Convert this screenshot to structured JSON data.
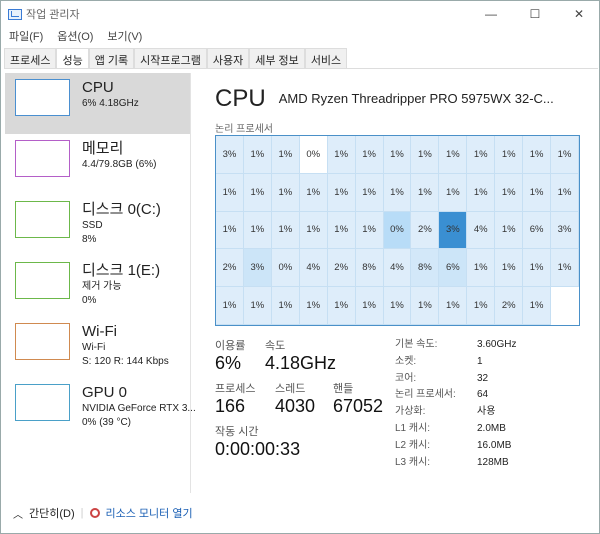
{
  "window": {
    "title": "작업 관리자",
    "minimize": "—",
    "maximize": "☐",
    "close": "✕"
  },
  "menu": [
    "파일(F)",
    "옵션(O)",
    "보기(V)"
  ],
  "tabs": [
    {
      "label": "프로세스"
    },
    {
      "label": "성능",
      "active": true
    },
    {
      "label": "앱 기록"
    },
    {
      "label": "시작프로그램"
    },
    {
      "label": "사용자"
    },
    {
      "label": "세부 정보"
    },
    {
      "label": "서비스"
    }
  ],
  "sidebar": [
    {
      "name": "CPU",
      "lines": [
        "6% 4.18GHz"
      ],
      "color": "#4a8fd0",
      "active": true
    },
    {
      "name": "메모리",
      "lines": [
        "4.4/79.8GB (6%)"
      ],
      "color": "#b45fc8"
    },
    {
      "name": "디스크 0(C:)",
      "lines": [
        "SSD",
        "8%"
      ],
      "color": "#6cb84a"
    },
    {
      "name": "디스크 1(E:)",
      "lines": [
        "제거 가능",
        "0%"
      ],
      "color": "#6cb84a"
    },
    {
      "name": "Wi-Fi",
      "lines": [
        "Wi-Fi",
        "S: 120 R: 144 Kbps"
      ],
      "color": "#d08a50"
    },
    {
      "name": "GPU 0",
      "lines": [
        "NVIDIA GeForce RTX 3...",
        "0% (39 °C)"
      ],
      "color": "#4aa0c8"
    }
  ],
  "main": {
    "title": "CPU",
    "model": "AMD Ryzen Threadripper PRO 5975WX 32-C...",
    "logical_label": "논리 프로세서",
    "cells": [
      "3%",
      "1%",
      "1%",
      "0%",
      "1%",
      "1%",
      "1%",
      "1%",
      "1%",
      "1%",
      "1%",
      "1%",
      "1%",
      "1%",
      "1%",
      "1%",
      "1%",
      "1%",
      "1%",
      "1%",
      "1%",
      "1%",
      "1%",
      "1%",
      "1%",
      "1%",
      "1%",
      "1%",
      "1%",
      "1%",
      "1%",
      "1%",
      "0%",
      "2%",
      "3%",
      "4%",
      "1%",
      "6%",
      "3%",
      "2%",
      "3%",
      "0%",
      "4%",
      "2%",
      "8%",
      "4%",
      "8%",
      "6%",
      "1%",
      "1%",
      "1%",
      "1%",
      "1%",
      "1%",
      "1%",
      "1%",
      "1%",
      "1%",
      "1%",
      "1%",
      "1%",
      "1%",
      "2%",
      "1%"
    ],
    "highlight_colors": {
      "3": "#ffffff",
      "32": "#b8dcf7",
      "34": "#3a8fd2",
      "40": "#cce5f8",
      "47": "#cce5f8",
      "46": "#d3e8f9"
    },
    "cell_color": "#deedfa",
    "stats": {
      "usage_label": "이용률",
      "usage": "6%",
      "speed_label": "속도",
      "speed": "4.18GHz",
      "proc_label": "프로세스",
      "proc": "166",
      "thread_label": "스레드",
      "thread": "4030",
      "handle_label": "핸들",
      "handle": "67052",
      "uptime_label": "작동 시간",
      "uptime": "0:00:00:33"
    },
    "specs": [
      [
        "기본 속도:",
        "3.60GHz"
      ],
      [
        "소켓:",
        "1"
      ],
      [
        "코어:",
        "32"
      ],
      [
        "논리 프로세서:",
        "64"
      ],
      [
        "가상화:",
        "사용"
      ],
      [
        "L1 캐시:",
        "2.0MB"
      ],
      [
        "L2 캐시:",
        "16.0MB"
      ],
      [
        "L3 캐시:",
        "128MB"
      ]
    ]
  },
  "footer": {
    "collapse": "간단히(D)",
    "monitor": "리소스 모니터 열기"
  }
}
